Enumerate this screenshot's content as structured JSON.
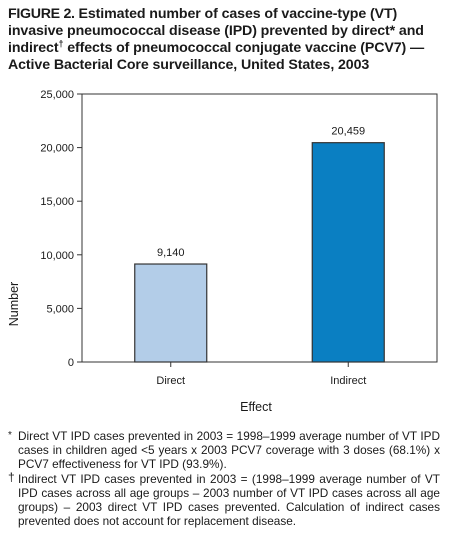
{
  "title": {
    "figure_label": "FIGURE 2.",
    "text": "Estimated number of cases of vaccine-type (VT) invasive pneumococcal disease (IPD) prevented by direct* and indirect",
    "dagger": "†",
    "text2": " effects of pneumococcal conjugate vaccine (PCV7) — Active Bacterial Core surveillance, United States, 2003"
  },
  "chart_data": {
    "type": "bar",
    "categories": [
      "Direct",
      "Indirect"
    ],
    "values": [
      9140,
      20459
    ],
    "value_labels": [
      "9,140",
      "20,459"
    ],
    "colors": [
      "#b3cde8",
      "#0a7fc2"
    ],
    "xlabel": "Effect",
    "ylabel": "Number",
    "ylim": [
      0,
      25000
    ],
    "yticks": [
      0,
      5000,
      10000,
      15000,
      20000,
      25000
    ],
    "ytick_labels": [
      "0",
      "5,000",
      "10,000",
      "15,000",
      "20,000",
      "25,000"
    ],
    "grid": false
  },
  "footnotes": [
    {
      "mark": "*",
      "text": "Direct VT IPD cases prevented in 2003 = 1998–1999 average number of VT IPD cases in children aged <5 years x 2003 PCV7 coverage with 3 doses (68.1%) x PCV7 effectiveness for VT IPD (93.9%)."
    },
    {
      "mark": "†",
      "text": "Indirect VT IPD cases prevented in 2003 = (1998–1999 average number of VT IPD cases across all age groups – 2003 number of VT IPD cases across all age groups) – 2003 direct VT IPD cases prevented. Calculation of indirect cases prevented does not account for replacement disease."
    }
  ]
}
